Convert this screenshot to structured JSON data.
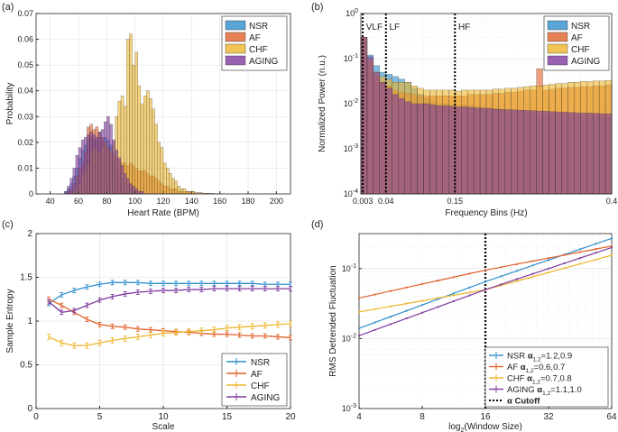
{
  "colors": {
    "NSR": "#2f8fce",
    "AF": "#e0602a",
    "CHF": "#eeb52a",
    "AGING": "#7e3a9e",
    "overlap": "#a0505f",
    "axis": "#262626",
    "grid": "#dcdcdc"
  },
  "chart_data": [
    {
      "panel": "(a)",
      "type": "bar",
      "subtype": "histogram-overlaid",
      "xlabel": "Heart Rate (BPM)",
      "ylabel": "Probability",
      "xlim": [
        30,
        210
      ],
      "ylim": [
        0,
        0.07
      ],
      "xticks": [
        40,
        60,
        80,
        100,
        120,
        140,
        160,
        180,
        200
      ],
      "yticks": [
        0,
        0.01,
        0.02,
        0.03,
        0.04,
        0.05,
        0.06,
        0.07
      ],
      "ytick_labels": [
        "0",
        "0.01",
        "0.02",
        "0.03",
        "0.04",
        "0.05",
        "0.06",
        "0.07"
      ],
      "legend": [
        "NSR",
        "AF",
        "CHF",
        "AGING"
      ],
      "legend_position": "top-right",
      "bin_start": 40,
      "bin_width": 2,
      "series": [
        {
          "name": "NSR",
          "values": [
            0,
            0,
            0,
            0,
            0,
            0.001,
            0.002,
            0.004,
            0.007,
            0.01,
            0.014,
            0.017,
            0.019,
            0.021,
            0.022,
            0.021,
            0.021,
            0.022,
            0.021,
            0.022,
            0.021,
            0.019,
            0.016,
            0.012,
            0.009,
            0.006,
            0.004,
            0.003,
            0.002,
            0.001,
            0.001,
            0,
            0,
            0,
            0,
            0,
            0,
            0,
            0,
            0,
            0,
            0,
            0,
            0,
            0,
            0,
            0,
            0,
            0,
            0,
            0,
            0,
            0,
            0,
            0,
            0,
            0,
            0,
            0,
            0,
            0
          ]
        },
        {
          "name": "AF",
          "values": [
            0,
            0,
            0,
            0,
            0,
            0,
            0.001,
            0.002,
            0.004,
            0.007,
            0.01,
            0.012,
            0.016,
            0.026,
            0.027,
            0.025,
            0.026,
            0.024,
            0.022,
            0.02,
            0.018,
            0.016,
            0.015,
            0.014,
            0.013,
            0.012,
            0.012,
            0.011,
            0.012,
            0.011,
            0.01,
            0.009,
            0.009,
            0.009,
            0.008,
            0.007,
            0.007,
            0.006,
            0.005,
            0.004,
            0.003,
            0.003,
            0.002,
            0.002,
            0.002,
            0.001,
            0.001,
            0.001,
            0.001,
            0.001,
            0.001,
            0.0005,
            0.0005,
            0.0005,
            0.0003,
            0.0003,
            0.0002,
            0.0002,
            0.0001,
            0.0001,
            0.0001
          ]
        },
        {
          "name": "CHF",
          "values": [
            0,
            0,
            0,
            0,
            0,
            0,
            0,
            0,
            0.001,
            0.002,
            0.004,
            0.007,
            0.009,
            0.012,
            0.016,
            0.018,
            0.017,
            0.016,
            0.018,
            0.02,
            0.018,
            0.017,
            0.02,
            0.03,
            0.036,
            0.038,
            0.034,
            0.06,
            0.062,
            0.05,
            0.055,
            0.042,
            0.035,
            0.038,
            0.04,
            0.037,
            0.033,
            0.027,
            0.02,
            0.018,
            0.012,
            0.01,
            0.008,
            0.006,
            0.005,
            0.003,
            0.002,
            0.002,
            0.001,
            0.001,
            0.001,
            0,
            0,
            0,
            0,
            0,
            0,
            0,
            0,
            0,
            0
          ]
        },
        {
          "name": "AGING",
          "values": [
            0,
            0,
            0,
            0,
            0,
            0.001,
            0.003,
            0.006,
            0.01,
            0.015,
            0.018,
            0.021,
            0.022,
            0.023,
            0.024,
            0.023,
            0.022,
            0.024,
            0.025,
            0.028,
            0.03,
            0.027,
            0.021,
            0.017,
            0.014,
            0.011,
            0.008,
            0.006,
            0.004,
            0.003,
            0.002,
            0.001,
            0.001,
            0,
            0,
            0,
            0,
            0,
            0,
            0,
            0,
            0,
            0,
            0,
            0,
            0,
            0,
            0,
            0,
            0,
            0,
            0,
            0,
            0,
            0,
            0,
            0,
            0,
            0,
            0,
            0
          ]
        }
      ]
    },
    {
      "panel": "(b)",
      "type": "bar",
      "subtype": "log-spectrum",
      "xlabel": "Frequency Bins (Hz)",
      "ylabel": "Normalized Power (n.u.)",
      "xlim": [
        0,
        0.4
      ],
      "ylim_log10": [
        -4,
        0
      ],
      "xticks": [
        0.003,
        0.04,
        0.15,
        0.4
      ],
      "xtick_labels": [
        "0.003",
        "0.04",
        "0.15",
        "0.4"
      ],
      "yticks_log10": [
        -4,
        -3,
        -2,
        -1,
        0
      ],
      "yticks_exp": [
        "-4",
        "-3",
        "-2",
        "-1",
        "0"
      ],
      "ytick_base": "10",
      "band_lines": [
        0.003,
        0.04,
        0.15
      ],
      "band_labels": [
        {
          "text": "VLF",
          "x": 0.004
        },
        {
          "text": "LF",
          "x": 0.041
        },
        {
          "text": "HF",
          "x": 0.151
        }
      ],
      "legend": [
        "NSR",
        "AF",
        "CHF",
        "AGING"
      ],
      "legend_position": "top-right",
      "bin_width": 0.01,
      "series": [
        {
          "name": "NSR",
          "values": [
            0.3,
            0.12,
            0.07,
            0.05,
            0.045,
            0.04,
            0.035,
            0.03,
            0.022,
            0.016,
            0.013,
            0.011,
            0.01,
            0.01,
            0.0095,
            0.009,
            0.0095,
            0.009,
            0.0085,
            0.008,
            0.008,
            0.0075,
            0.0075,
            0.007,
            0.007,
            0.007,
            0.0065,
            0.0065,
            0.006,
            0.006,
            0.006,
            0.0058,
            0.0057,
            0.0056,
            0.0055,
            0.0055,
            0.0054,
            0.0053,
            0.0052,
            0.0052
          ]
        },
        {
          "name": "AF",
          "values": [
            0.3,
            0.09,
            0.04,
            0.03,
            0.025,
            0.02,
            0.018,
            0.017,
            0.016,
            0.015,
            0.015,
            0.015,
            0.015,
            0.015,
            0.015,
            0.015,
            0.015,
            0.016,
            0.016,
            0.016,
            0.016,
            0.017,
            0.017,
            0.018,
            0.018,
            0.019,
            0.02,
            0.02,
            0.06,
            0.02,
            0.021,
            0.022,
            0.022,
            0.023,
            0.023,
            0.024,
            0.024,
            0.025,
            0.025,
            0.026
          ]
        },
        {
          "name": "CHF",
          "values": [
            0.3,
            0.1,
            0.05,
            0.04,
            0.035,
            0.03,
            0.03,
            0.03,
            0.025,
            0.022,
            0.02,
            0.02,
            0.02,
            0.02,
            0.02,
            0.019,
            0.02,
            0.02,
            0.02,
            0.02,
            0.02,
            0.021,
            0.021,
            0.022,
            0.022,
            0.023,
            0.024,
            0.025,
            0.025,
            0.026,
            0.027,
            0.028,
            0.028,
            0.03,
            0.03,
            0.031,
            0.031,
            0.032,
            0.032,
            0.033
          ]
        },
        {
          "name": "AGING",
          "values": [
            0.3,
            0.11,
            0.05,
            0.03,
            0.022,
            0.016,
            0.013,
            0.011,
            0.01,
            0.01,
            0.01,
            0.0095,
            0.009,
            0.009,
            0.0088,
            0.0085,
            0.0085,
            0.0083,
            0.008,
            0.008,
            0.0078,
            0.0076,
            0.0075,
            0.0074,
            0.0073,
            0.0072,
            0.0071,
            0.007,
            0.0069,
            0.0068,
            0.0067,
            0.0066,
            0.0065,
            0.0064,
            0.0063,
            0.0062,
            0.0062,
            0.0061,
            0.006,
            0.006
          ]
        }
      ]
    },
    {
      "panel": "(c)",
      "type": "line",
      "subtype": "errorbar",
      "xlabel": "Scale",
      "ylabel": "Sample Entropy",
      "xlim": [
        0,
        20
      ],
      "ylim": [
        0,
        2
      ],
      "xticks": [
        0,
        5,
        10,
        15,
        20
      ],
      "yticks": [
        0,
        0.5,
        1,
        1.5,
        2
      ],
      "legend": [
        "NSR",
        "AF",
        "CHF",
        "AGING"
      ],
      "legend_position": "bottom-right",
      "x": [
        1,
        2,
        3,
        4,
        5,
        6,
        7,
        8,
        9,
        10,
        11,
        12,
        13,
        14,
        15,
        16,
        17,
        18,
        19,
        20
      ],
      "series": [
        {
          "name": "NSR",
          "values": [
            1.2,
            1.3,
            1.35,
            1.39,
            1.42,
            1.44,
            1.44,
            1.44,
            1.43,
            1.43,
            1.43,
            1.43,
            1.43,
            1.43,
            1.43,
            1.43,
            1.43,
            1.42,
            1.42,
            1.42
          ],
          "err": 0.025
        },
        {
          "name": "AF",
          "values": [
            1.25,
            1.18,
            1.1,
            1.02,
            0.96,
            0.94,
            0.93,
            0.91,
            0.9,
            0.89,
            0.88,
            0.87,
            0.86,
            0.85,
            0.85,
            0.84,
            0.83,
            0.83,
            0.82,
            0.81
          ],
          "err": 0.025
        },
        {
          "name": "CHF",
          "values": [
            0.82,
            0.75,
            0.72,
            0.72,
            0.75,
            0.78,
            0.8,
            0.82,
            0.84,
            0.86,
            0.87,
            0.88,
            0.89,
            0.9,
            0.92,
            0.93,
            0.94,
            0.95,
            0.96,
            0.97
          ],
          "err": 0.03
        },
        {
          "name": "AGING",
          "values": [
            1.22,
            1.1,
            1.12,
            1.18,
            1.24,
            1.28,
            1.31,
            1.33,
            1.34,
            1.35,
            1.35,
            1.36,
            1.36,
            1.37,
            1.37,
            1.37,
            1.37,
            1.37,
            1.37,
            1.37
          ],
          "err": 0.025
        }
      ]
    },
    {
      "panel": "(d)",
      "type": "line",
      "subtype": "loglog-dfa",
      "xlabel": "log",
      "xlabel_sub": "2",
      "xlabel_tail": "(Window Size)",
      "ylabel": "RMS Detrended Fluctuation",
      "xlim": [
        4,
        64
      ],
      "ylim_log10": [
        -3,
        -0.5
      ],
      "xticks": [
        4,
        8,
        16,
        32,
        64
      ],
      "yticks_log10": [
        -3,
        -2,
        -1
      ],
      "yticks_exp": [
        "-3",
        "-2",
        "-1"
      ],
      "ytick_base": "10",
      "cutoff": 16,
      "legend_position": "bottom-right",
      "legend": [
        {
          "name": "NSR",
          "alpha": "α",
          "sub": "1,2",
          "value": "=1.2,0.9"
        },
        {
          "name": "AF",
          "alpha": "α",
          "sub": "1,2",
          "value": "=0.6,0.7"
        },
        {
          "name": "CHF",
          "alpha": "α",
          "sub": "1,2",
          "value": "=0.7,0.8"
        },
        {
          "name": "AGING",
          "alpha": "α",
          "sub": "1,2",
          "value": "=1.1,1.0"
        },
        {
          "name": "α Cutoff"
        }
      ],
      "series": [
        {
          "name": "NSR",
          "points": [
            [
              4,
              0.014
            ],
            [
              16,
              0.065
            ],
            [
              64,
              0.27
            ]
          ]
        },
        {
          "name": "AF",
          "points": [
            [
              4,
              0.038
            ],
            [
              16,
              0.095
            ],
            [
              64,
              0.21
            ]
          ]
        },
        {
          "name": "CHF",
          "points": [
            [
              4,
              0.024
            ],
            [
              16,
              0.05
            ],
            [
              64,
              0.155
            ]
          ]
        },
        {
          "name": "AGING",
          "points": [
            [
              4,
              0.011
            ],
            [
              16,
              0.05
            ],
            [
              64,
              0.2
            ]
          ]
        }
      ]
    }
  ],
  "panels": {
    "a": "(a)",
    "b": "(b)",
    "c": "(c)",
    "d": "(d)"
  }
}
